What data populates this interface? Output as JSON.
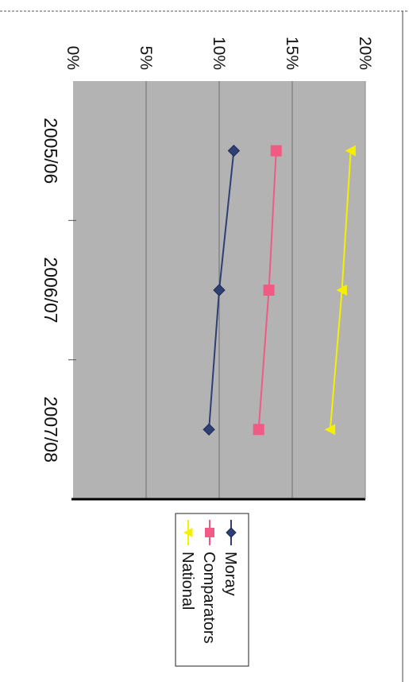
{
  "chart_data": {
    "type": "line",
    "title": "",
    "xlabel": "",
    "ylabel": "",
    "categories": [
      "2005/06",
      "2006/07",
      "2007/08"
    ],
    "ylim": [
      0,
      20
    ],
    "y_ticks": [
      "0%",
      "5%",
      "10%",
      "15%",
      "20%"
    ],
    "grid": true,
    "legend_position": "right",
    "orientation": "rotated-90-clockwise",
    "series": [
      {
        "name": "Moray",
        "values": [
          11.0,
          10.0,
          9.3
        ],
        "color": "#2e3f73",
        "marker": "diamond"
      },
      {
        "name": "Comparators",
        "values": [
          13.9,
          13.4,
          12.7
        ],
        "color": "#f05a84",
        "marker": "square"
      },
      {
        "name": "National",
        "values": [
          19.0,
          18.4,
          17.6
        ],
        "color": "#f4f000",
        "marker": "triangle"
      }
    ]
  }
}
